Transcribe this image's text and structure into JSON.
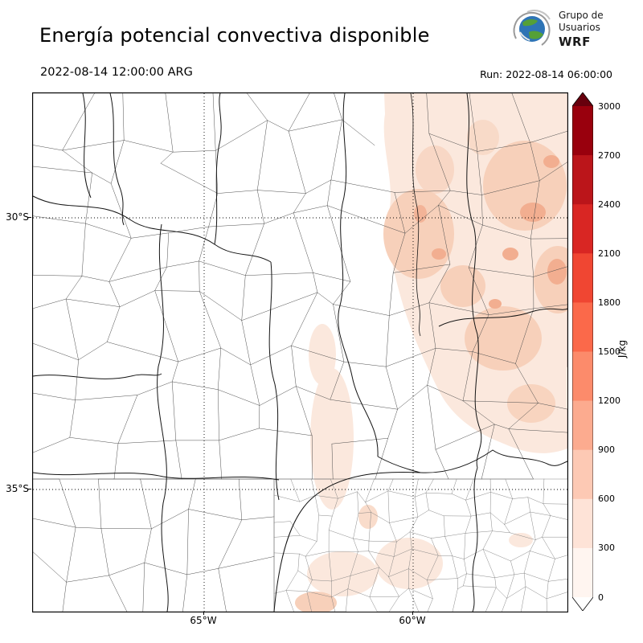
{
  "header": {
    "title": "Energía potencial convectiva disponible",
    "logo": {
      "line1": "Grupo de",
      "line2": "Usuarios",
      "line3": "WRF"
    },
    "valid_time": "2022-08-14 12:00:00 ARG",
    "run_time": "Run: 2022-08-14 06:00:00"
  },
  "map": {
    "y_ticks": [
      "30°S",
      "35°S"
    ],
    "x_ticks": [
      "65°W",
      "60°W"
    ]
  },
  "colorbar": {
    "unit": "J/kg",
    "tick_labels": [
      "3000",
      "2700",
      "2400",
      "2100",
      "1800",
      "1500",
      "1200",
      "900",
      "600",
      "300",
      "0"
    ],
    "levels": [
      0,
      300,
      600,
      900,
      1200,
      1500,
      1800,
      2100,
      2400,
      2700,
      3000
    ],
    "over_color": "#67000d",
    "under_color": "#ffffff",
    "segments_top_to_bottom": [
      "#99000d",
      "#bb151a",
      "#d92623",
      "#f04632",
      "#fb694a",
      "#fc8b6b",
      "#fcab8f",
      "#fdc9b4",
      "#fee3d7",
      "#fff5f0"
    ]
  },
  "chart_data": {
    "type": "heatmap",
    "title": "Energía potencial convectiva disponible",
    "variable": "CAPE",
    "units": "J/kg",
    "valid_time": "2022-08-14 12:00:00 ARG",
    "run_time": "2022-08-14 06:00:00",
    "color_levels": [
      0,
      300,
      600,
      900,
      1200,
      1500,
      1800,
      2100,
      2400,
      2700,
      3000
    ],
    "lat_gridlines": [
      "30°S",
      "35°S"
    ],
    "lon_gridlines": [
      "65°W",
      "60°W"
    ],
    "legend_position": "right",
    "observed_pattern": "Low CAPE (roughly 0-900 J/kg) shading over the northeastern half of the domain and small patches over central Buenos Aires; near-zero CAPE (white) over the west and south"
  }
}
